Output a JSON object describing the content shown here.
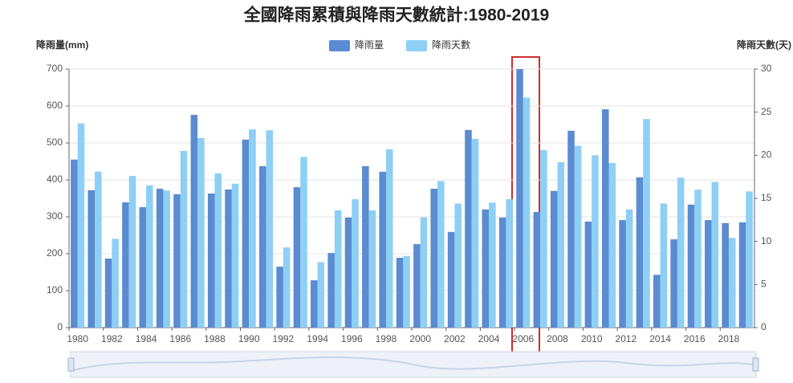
{
  "chart_data": {
    "type": "bar",
    "title": "全國降雨累積與降雨天數統計:1980-2019",
    "y_label": "降雨量(mm)",
    "y2_label": "降雨天數(天)",
    "categories": [
      "1980",
      null,
      "1982",
      null,
      "1984",
      null,
      "1986",
      null,
      "1988",
      null,
      "1990",
      null,
      "1992",
      null,
      "1994",
      null,
      "1996",
      null,
      "1998",
      null,
      "2000",
      null,
      "2002",
      null,
      "2004",
      null,
      "2006",
      null,
      "2008",
      null,
      "2010",
      null,
      "2012",
      null,
      "2014",
      null,
      "2016",
      null,
      "2018",
      null
    ],
    "series": [
      {
        "name": "降雨量",
        "color": "#5b8bd0",
        "axis": "y",
        "values": [
          455,
          372,
          187,
          339,
          326,
          376,
          361,
          576,
          363,
          374,
          509,
          437,
          165,
          380,
          128,
          202,
          298,
          437,
          422,
          189,
          226,
          376,
          259,
          535,
          320,
          298,
          700,
          313,
          370,
          533,
          287,
          591,
          291,
          407,
          143,
          239,
          333,
          291,
          283,
          285
        ]
      },
      {
        "name": "降雨天數",
        "color": "#8ecff5",
        "axis": "y2",
        "values": [
          23.7,
          18.1,
          10.3,
          17.6,
          16.5,
          15.9,
          20.5,
          22.0,
          17.9,
          16.7,
          23.0,
          22.9,
          9.3,
          19.8,
          7.6,
          13.6,
          14.9,
          13.6,
          20.7,
          8.3,
          12.8,
          17.0,
          14.4,
          21.9,
          14.5,
          14.9,
          26.7,
          20.6,
          19.2,
          21.1,
          20.0,
          19.1,
          13.7,
          24.2,
          14.4,
          17.4,
          16.0,
          16.9,
          10.4,
          15.8
        ]
      }
    ],
    "ylim": [
      0,
      700
    ],
    "yticks": [
      0,
      100,
      200,
      300,
      400,
      500,
      600,
      700
    ],
    "y2lim": [
      0,
      30
    ],
    "y2ticks": [
      0,
      5,
      10,
      15,
      20,
      25,
      30
    ],
    "grid": true,
    "legend": "top"
  }
}
